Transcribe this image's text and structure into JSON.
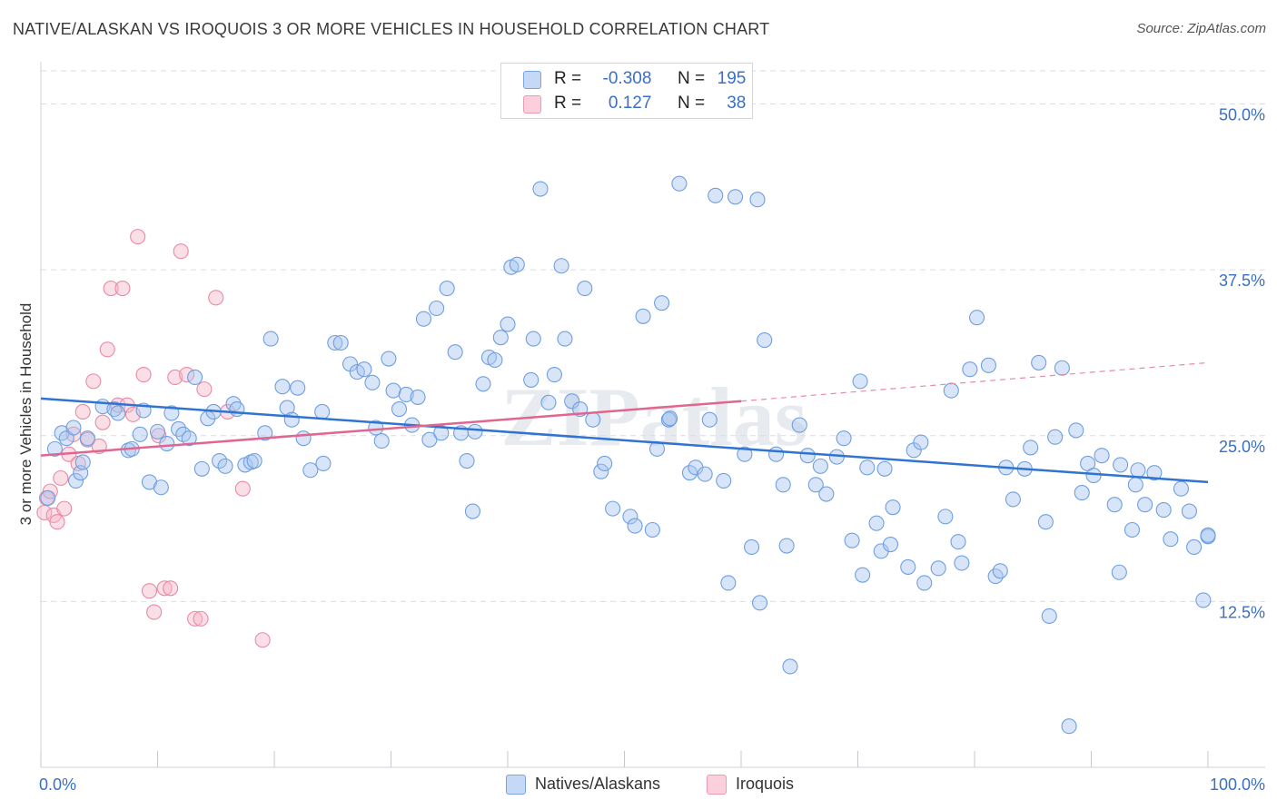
{
  "title": "NATIVE/ALASKAN VS IROQUOIS 3 OR MORE VEHICLES IN HOUSEHOLD CORRELATION CHART",
  "source": "Source: ZipAtlas.com",
  "watermark": "ZIPatlas",
  "legend": {
    "rows": [
      {
        "r_label": "R =",
        "r_value": "-0.308",
        "n_label": "N =",
        "n_value": "195",
        "color": "#a9c6f0"
      },
      {
        "r_label": "R =",
        "r_value": "0.127",
        "n_label": "N =",
        "n_value": "38",
        "color": "#f6b8ca"
      }
    ]
  },
  "bottom_legend": [
    {
      "label": "Natives/Alaskans",
      "color": "#a9c6f0"
    },
    {
      "label": "Iroquois",
      "color": "#f6b8ca"
    }
  ],
  "chart_data": {
    "type": "scatter",
    "title": "NATIVE/ALASKAN VS IROQUOIS 3 OR MORE VEHICLES IN HOUSEHOLD CORRELATION CHART",
    "xlabel": "",
    "ylabel": "3 or more Vehicles in Household",
    "xlim": [
      0,
      100
    ],
    "ylim": [
      0,
      52.5
    ],
    "x_tick_labels": [
      "0.0%",
      "100.0%"
    ],
    "y_ticks": [
      12.5,
      25.0,
      37.5,
      50.0
    ],
    "y_tick_labels": [
      "12.5%",
      "25.0%",
      "37.5%",
      "50.0%"
    ],
    "grid": true,
    "legend_position": "top-center",
    "series": [
      {
        "name": "Natives/Alaskans",
        "color": "#6f9fe0",
        "fill": "#a9c6f0",
        "trend": {
          "x0": 0,
          "y0": 27.8,
          "x1": 100,
          "y1": 21.5
        },
        "points": [
          [
            0.6,
            20.3
          ],
          [
            1.2,
            24.0
          ],
          [
            1.8,
            25.2
          ],
          [
            2.2,
            24.8
          ],
          [
            2.8,
            25.6
          ],
          [
            3.0,
            21.6
          ],
          [
            3.4,
            22.2
          ],
          [
            3.6,
            23.0
          ],
          [
            4.0,
            24.8
          ],
          [
            5.3,
            27.2
          ],
          [
            6.3,
            27.0
          ],
          [
            6.6,
            26.7
          ],
          [
            7.5,
            23.9
          ],
          [
            7.8,
            24.0
          ],
          [
            8.5,
            25.1
          ],
          [
            8.8,
            26.9
          ],
          [
            9.3,
            21.5
          ],
          [
            10.0,
            25.3
          ],
          [
            10.3,
            21.1
          ],
          [
            10.8,
            24.4
          ],
          [
            11.2,
            26.7
          ],
          [
            11.8,
            25.5
          ],
          [
            12.2,
            25.1
          ],
          [
            12.7,
            24.8
          ],
          [
            13.2,
            29.4
          ],
          [
            13.8,
            22.5
          ],
          [
            14.3,
            26.3
          ],
          [
            14.8,
            26.8
          ],
          [
            15.3,
            23.1
          ],
          [
            15.8,
            22.7
          ],
          [
            16.5,
            27.4
          ],
          [
            16.8,
            27.0
          ],
          [
            17.5,
            22.8
          ],
          [
            18.0,
            23.0
          ],
          [
            18.3,
            23.1
          ],
          [
            19.2,
            25.2
          ],
          [
            19.7,
            32.3
          ],
          [
            20.7,
            28.7
          ],
          [
            21.1,
            27.1
          ],
          [
            21.5,
            26.2
          ],
          [
            22.0,
            28.6
          ],
          [
            22.5,
            24.8
          ],
          [
            23.1,
            22.4
          ],
          [
            24.1,
            26.8
          ],
          [
            24.2,
            22.9
          ],
          [
            25.2,
            32.0
          ],
          [
            25.7,
            32.0
          ],
          [
            26.5,
            30.4
          ],
          [
            27.1,
            29.8
          ],
          [
            27.7,
            30.0
          ],
          [
            28.4,
            29.0
          ],
          [
            28.7,
            25.6
          ],
          [
            29.2,
            24.6
          ],
          [
            29.8,
            30.8
          ],
          [
            30.2,
            28.4
          ],
          [
            30.7,
            27.0
          ],
          [
            31.3,
            28.1
          ],
          [
            31.8,
            25.8
          ],
          [
            32.3,
            27.9
          ],
          [
            32.8,
            33.8
          ],
          [
            33.3,
            24.7
          ],
          [
            33.9,
            34.6
          ],
          [
            34.3,
            25.2
          ],
          [
            34.8,
            36.1
          ],
          [
            35.5,
            31.3
          ],
          [
            36.0,
            25.2
          ],
          [
            36.5,
            23.1
          ],
          [
            37.0,
            19.3
          ],
          [
            37.2,
            25.3
          ],
          [
            37.9,
            28.9
          ],
          [
            38.4,
            30.9
          ],
          [
            38.9,
            30.7
          ],
          [
            39.4,
            32.4
          ],
          [
            40.0,
            33.4
          ],
          [
            40.3,
            37.7
          ],
          [
            40.8,
            37.9
          ],
          [
            42.0,
            29.2
          ],
          [
            42.2,
            32.3
          ],
          [
            42.8,
            43.6
          ],
          [
            43.5,
            27.5
          ],
          [
            44.0,
            29.6
          ],
          [
            44.6,
            37.8
          ],
          [
            44.9,
            32.3
          ],
          [
            45.5,
            27.6
          ],
          [
            46.2,
            27.0
          ],
          [
            46.6,
            36.1
          ],
          [
            47.3,
            26.2
          ],
          [
            48.0,
            22.3
          ],
          [
            48.3,
            22.9
          ],
          [
            49.0,
            19.5
          ],
          [
            50.5,
            18.9
          ],
          [
            50.9,
            18.2
          ],
          [
            51.6,
            34.0
          ],
          [
            52.4,
            17.9
          ],
          [
            52.8,
            24.0
          ],
          [
            53.2,
            35.0
          ],
          [
            53.8,
            26.2
          ],
          [
            53.9,
            26.3
          ],
          [
            54.7,
            44.0
          ],
          [
            55.6,
            22.2
          ],
          [
            56.1,
            22.6
          ],
          [
            56.9,
            22.1
          ],
          [
            57.3,
            26.2
          ],
          [
            57.8,
            43.1
          ],
          [
            58.5,
            21.6
          ],
          [
            58.9,
            13.9
          ],
          [
            59.5,
            43.0
          ],
          [
            60.3,
            23.6
          ],
          [
            60.9,
            16.6
          ],
          [
            61.4,
            42.8
          ],
          [
            61.6,
            12.4
          ],
          [
            62.0,
            32.2
          ],
          [
            63.0,
            23.6
          ],
          [
            63.6,
            21.3
          ],
          [
            63.9,
            16.7
          ],
          [
            64.2,
            7.6
          ],
          [
            65.0,
            25.8
          ],
          [
            65.7,
            23.5
          ],
          [
            66.4,
            21.3
          ],
          [
            66.8,
            22.7
          ],
          [
            67.3,
            20.6
          ],
          [
            68.2,
            23.4
          ],
          [
            68.8,
            24.8
          ],
          [
            69.5,
            17.1
          ],
          [
            70.2,
            29.1
          ],
          [
            70.4,
            14.5
          ],
          [
            70.8,
            22.6
          ],
          [
            71.6,
            18.4
          ],
          [
            72.0,
            16.3
          ],
          [
            72.3,
            22.5
          ],
          [
            72.8,
            16.8
          ],
          [
            73.0,
            19.6
          ],
          [
            74.3,
            15.1
          ],
          [
            74.8,
            23.9
          ],
          [
            75.4,
            24.5
          ],
          [
            75.7,
            13.9
          ],
          [
            76.9,
            15.0
          ],
          [
            77.5,
            18.9
          ],
          [
            78.0,
            28.4
          ],
          [
            78.6,
            17.0
          ],
          [
            78.9,
            15.4
          ],
          [
            79.6,
            30.0
          ],
          [
            80.2,
            33.9
          ],
          [
            81.2,
            30.3
          ],
          [
            81.8,
            14.4
          ],
          [
            82.2,
            14.8
          ],
          [
            82.7,
            22.6
          ],
          [
            83.3,
            20.2
          ],
          [
            84.3,
            22.5
          ],
          [
            84.8,
            24.1
          ],
          [
            85.5,
            30.5
          ],
          [
            86.1,
            18.5
          ],
          [
            86.4,
            11.4
          ],
          [
            86.9,
            24.9
          ],
          [
            87.5,
            30.1
          ],
          [
            88.1,
            3.1
          ],
          [
            88.7,
            25.4
          ],
          [
            89.2,
            20.7
          ],
          [
            89.7,
            22.9
          ],
          [
            90.2,
            22.0
          ],
          [
            90.9,
            23.5
          ],
          [
            92.0,
            19.8
          ],
          [
            92.4,
            14.7
          ],
          [
            92.5,
            22.8
          ],
          [
            93.5,
            17.9
          ],
          [
            93.8,
            21.3
          ],
          [
            94.0,
            22.4
          ],
          [
            94.6,
            19.8
          ],
          [
            95.4,
            22.2
          ],
          [
            96.2,
            19.4
          ],
          [
            96.8,
            17.2
          ],
          [
            97.7,
            21.0
          ],
          [
            98.4,
            19.3
          ],
          [
            98.8,
            16.6
          ],
          [
            99.6,
            12.6
          ],
          [
            100.0,
            17.4
          ],
          [
            100.0,
            17.5
          ]
        ]
      },
      {
        "name": "Iroquois",
        "color": "#e88aa5",
        "fill": "#f6b8ca",
        "trend": {
          "x0": 0,
          "y0": 23.5,
          "x1": 60,
          "y1": 27.6,
          "dash_to_x": 100,
          "dash_to_y": 30.5
        },
        "points": [
          [
            0.3,
            19.2
          ],
          [
            0.5,
            20.3
          ],
          [
            0.8,
            20.8
          ],
          [
            1.1,
            19.0
          ],
          [
            1.4,
            18.5
          ],
          [
            1.7,
            21.8
          ],
          [
            2.0,
            19.5
          ],
          [
            2.4,
            23.6
          ],
          [
            2.8,
            25.1
          ],
          [
            3.2,
            22.9
          ],
          [
            3.6,
            26.8
          ],
          [
            4.0,
            24.7
          ],
          [
            4.5,
            29.1
          ],
          [
            5.0,
            24.2
          ],
          [
            5.3,
            26.0
          ],
          [
            5.7,
            31.5
          ],
          [
            6.0,
            36.1
          ],
          [
            6.6,
            27.3
          ],
          [
            7.0,
            36.1
          ],
          [
            7.4,
            27.3
          ],
          [
            7.9,
            26.6
          ],
          [
            8.3,
            40.0
          ],
          [
            8.8,
            29.6
          ],
          [
            9.3,
            13.3
          ],
          [
            9.7,
            11.7
          ],
          [
            10.1,
            25.0
          ],
          [
            10.6,
            13.5
          ],
          [
            11.1,
            13.5
          ],
          [
            11.5,
            29.4
          ],
          [
            12.0,
            38.9
          ],
          [
            12.5,
            29.6
          ],
          [
            13.2,
            11.2
          ],
          [
            13.7,
            11.2
          ],
          [
            14.0,
            28.5
          ],
          [
            15.0,
            35.4
          ],
          [
            16.0,
            26.8
          ],
          [
            17.3,
            21.0
          ],
          [
            19.0,
            9.6
          ]
        ]
      }
    ]
  }
}
